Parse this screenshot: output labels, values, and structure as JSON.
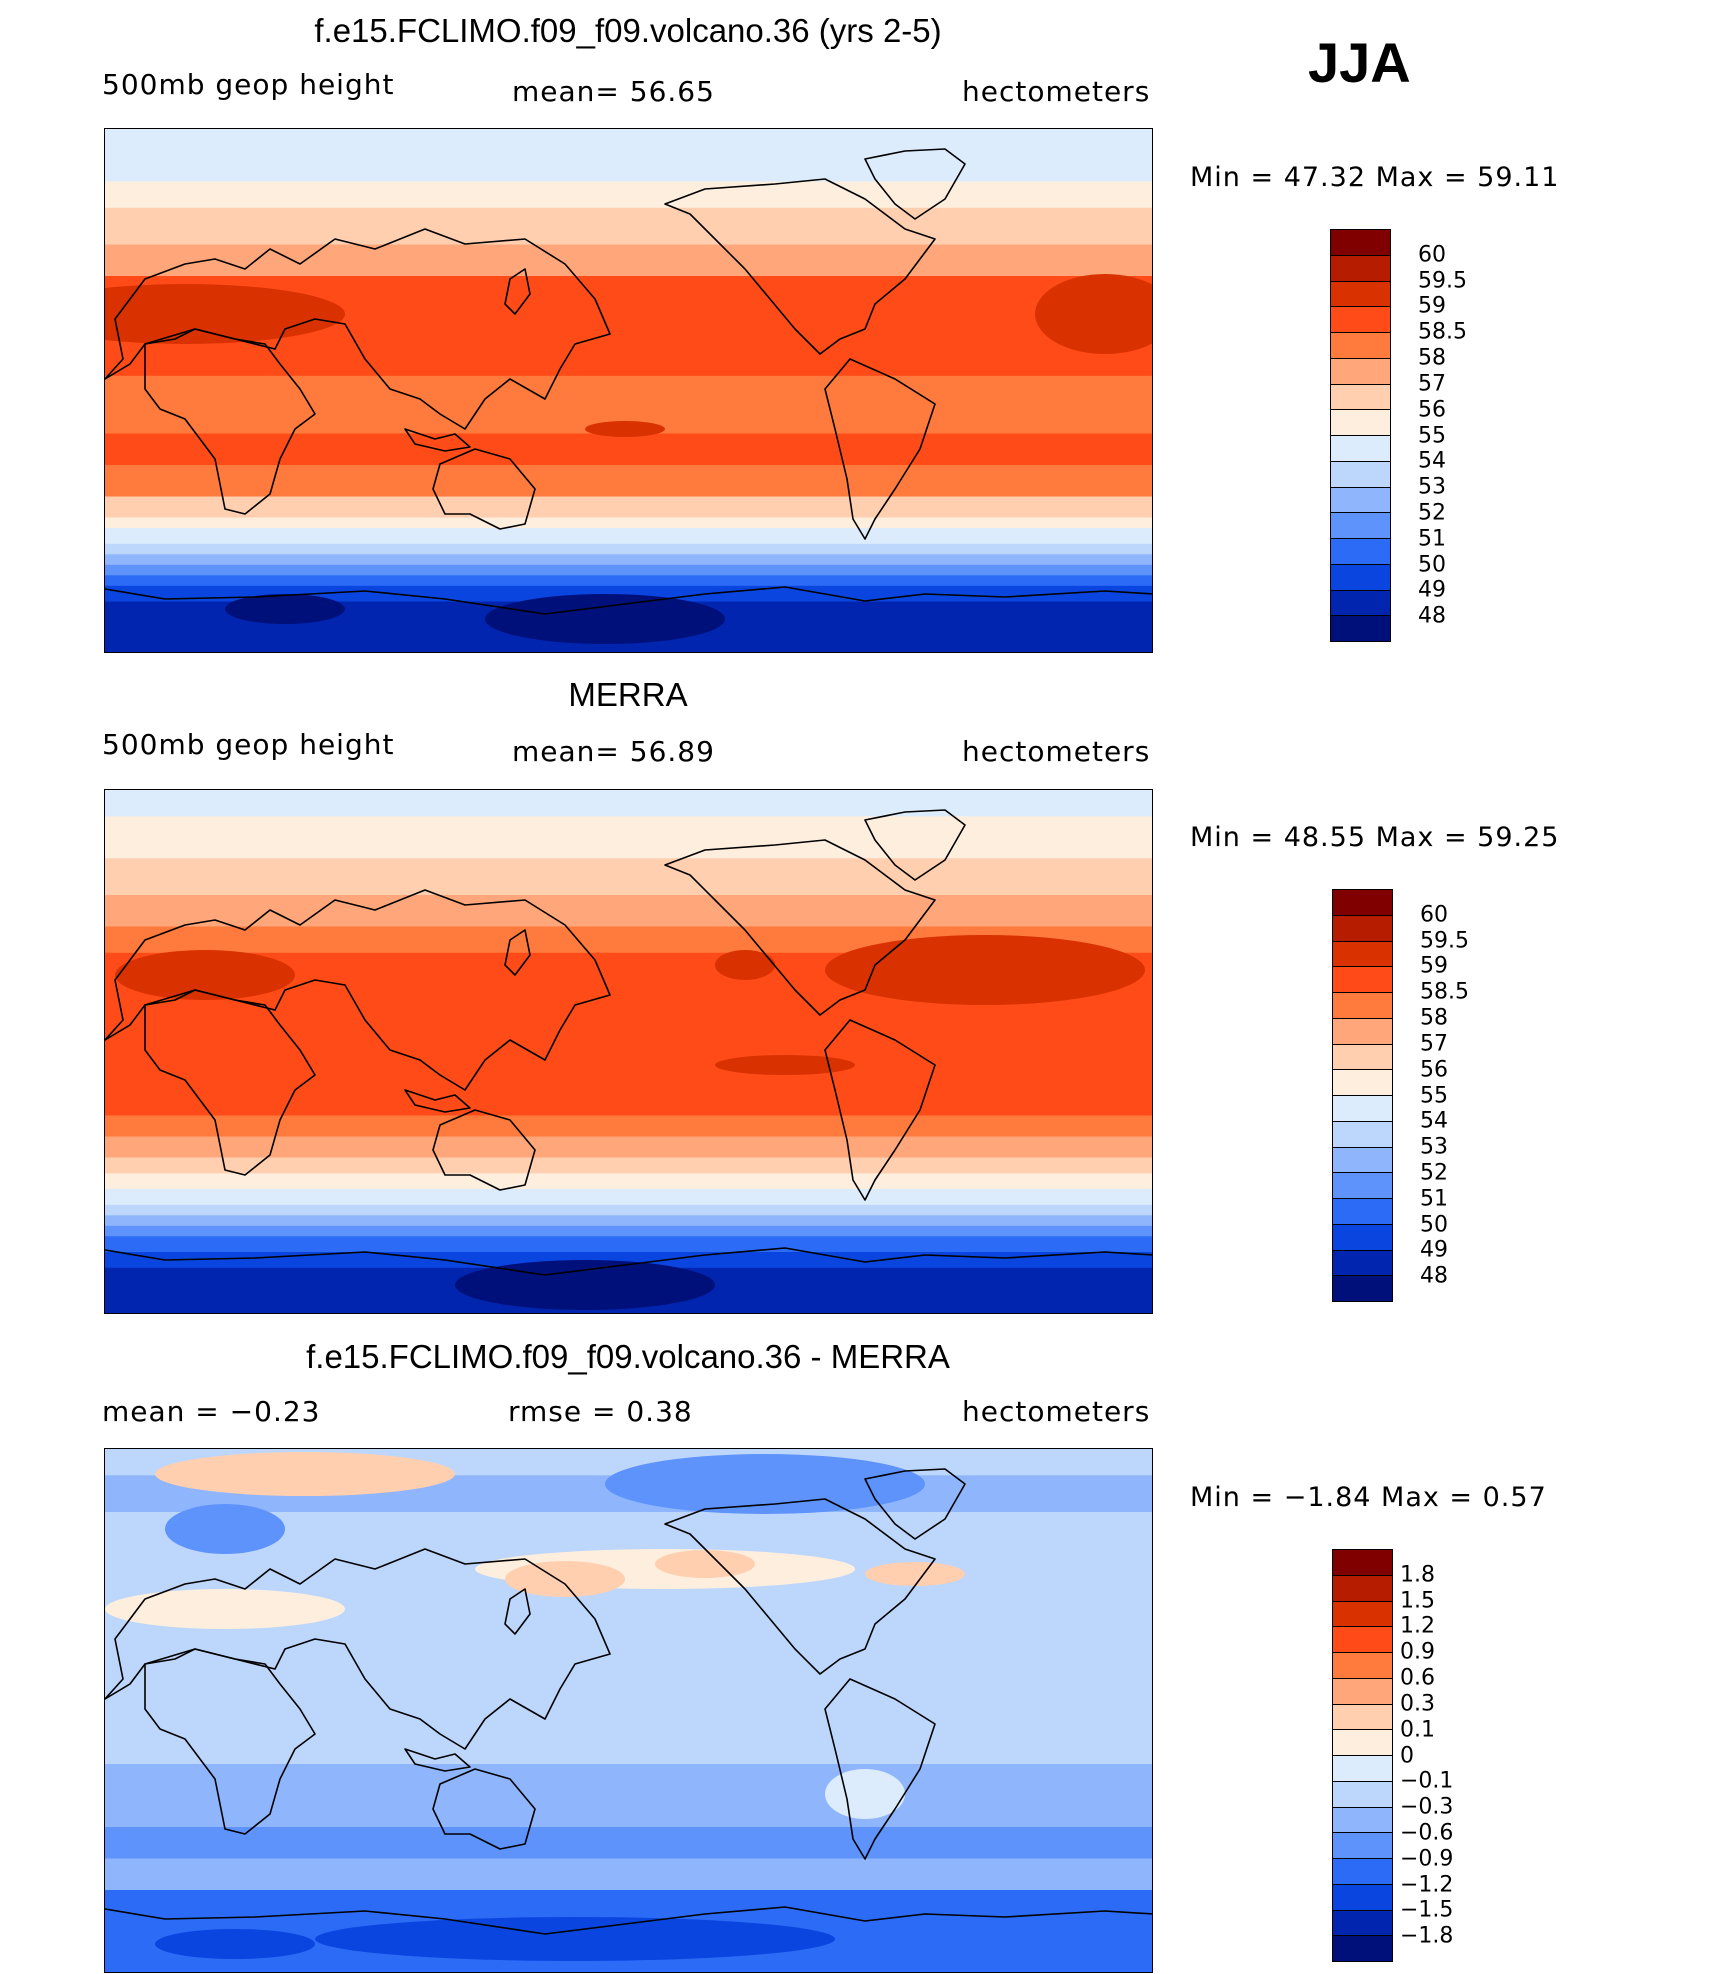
{
  "season": "JJA",
  "panels": [
    {
      "title": "f.e15.FCLIMO.f09_f09.volcano.36 (yrs 2-5)",
      "left_label": "500mb geop height",
      "center_label": "mean=   56.65",
      "right_label": "hectometers",
      "minmax": "Min =   47.32 Max =   59.11",
      "map_kind": "model",
      "colorbar": {
        "labels": [
          "60",
          "59.5",
          "59",
          "58.5",
          "58",
          "57",
          "56",
          "55",
          "54",
          "53",
          "52",
          "51",
          "50",
          "49",
          "48"
        ],
        "colors": [
          "#800000",
          "#b51c00",
          "#d93100",
          "#ff4b18",
          "#ff7a3d",
          "#ffa77a",
          "#ffcfb0",
          "#fdeede",
          "#dcecfd",
          "#bcd6fc",
          "#8fb6fc",
          "#5e93fc",
          "#2c6bf6",
          "#0a45e0",
          "#0225b0",
          "#00107a"
        ]
      }
    },
    {
      "title": "MERRA",
      "left_label": "500mb geop height",
      "center_label": "mean=   56.89",
      "right_label": "hectometers",
      "minmax": "Min =   48.55 Max =   59.25",
      "map_kind": "obs",
      "colorbar": {
        "labels": [
          "60",
          "59.5",
          "59",
          "58.5",
          "58",
          "57",
          "56",
          "55",
          "54",
          "53",
          "52",
          "51",
          "50",
          "49",
          "48"
        ],
        "colors": [
          "#800000",
          "#b51c00",
          "#d93100",
          "#ff4b18",
          "#ff7a3d",
          "#ffa77a",
          "#ffcfb0",
          "#fdeede",
          "#dcecfd",
          "#bcd6fc",
          "#8fb6fc",
          "#5e93fc",
          "#2c6bf6",
          "#0a45e0",
          "#0225b0",
          "#00107a"
        ]
      }
    },
    {
      "title": "f.e15.FCLIMO.f09_f09.volcano.36 - MERRA",
      "left_label": "mean =   −0.23",
      "center_label": "rmse =    0.38",
      "right_label": "hectometers",
      "minmax": "Min =   −1.84 Max =    0.57",
      "map_kind": "diff",
      "colorbar": {
        "labels": [
          "1.8",
          "1.5",
          "1.2",
          "0.9",
          "0.6",
          "0.3",
          "0.1",
          "0",
          "−0.1",
          "−0.3",
          "−0.6",
          "−0.9",
          "−1.2",
          "−1.5",
          "−1.8"
        ],
        "colors": [
          "#800000",
          "#b51c00",
          "#d93100",
          "#ff4b18",
          "#ff7a3d",
          "#ffa77a",
          "#ffcfb0",
          "#fdeede",
          "#dcecfd",
          "#bcd6fc",
          "#8fb6fc",
          "#5e93fc",
          "#2c6bf6",
          "#0a45e0",
          "#0225b0",
          "#00107a"
        ]
      }
    }
  ]
}
